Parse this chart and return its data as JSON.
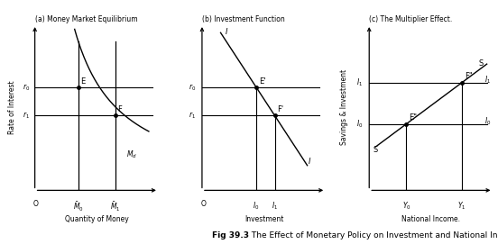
{
  "fig_title_bold": "Fig 39.3",
  "fig_title_normal": " The Effect of Monetary Policy on Investment and National Income",
  "panel_a_title": "(a) Money Market Equilibrium",
  "panel_b_title": "(b) Investment Function",
  "panel_c_title": "(c) The Multiplier Effect.",
  "panel_a_xlabel": "Quantity of Money",
  "panel_a_ylabel": "Rate of Interest",
  "panel_b_xlabel": "Investment",
  "panel_c_xlabel": "National Income.",
  "panel_c_ylabel": "Savings & Investment",
  "background_color": "#ffffff",
  "line_color": "#000000",
  "panel_a": {
    "xlim": [
      0,
      10
    ],
    "ylim": [
      0,
      10
    ],
    "M0_x": 3.5,
    "M1_x": 6.5,
    "r0_y": 6.2,
    "r1_y": 4.5,
    "md_x0": 0.8,
    "md_x1": 9.0,
    "md_a": 10.5,
    "md_b": 0.28,
    "md_c": 0.15
  },
  "panel_b": {
    "xlim": [
      0,
      10
    ],
    "ylim": [
      0,
      10
    ],
    "r0_y": 6.2,
    "r1_y": 4.5,
    "I_x0": 1.5,
    "I_y0": 9.5,
    "I_x1": 8.5,
    "I_y1": 1.5
  },
  "panel_c": {
    "xlim": [
      0,
      10
    ],
    "ylim": [
      0,
      10
    ],
    "I0_y": 4.0,
    "I1_y": 6.5,
    "Y0_x": 3.0,
    "Y1_x": 7.5
  }
}
